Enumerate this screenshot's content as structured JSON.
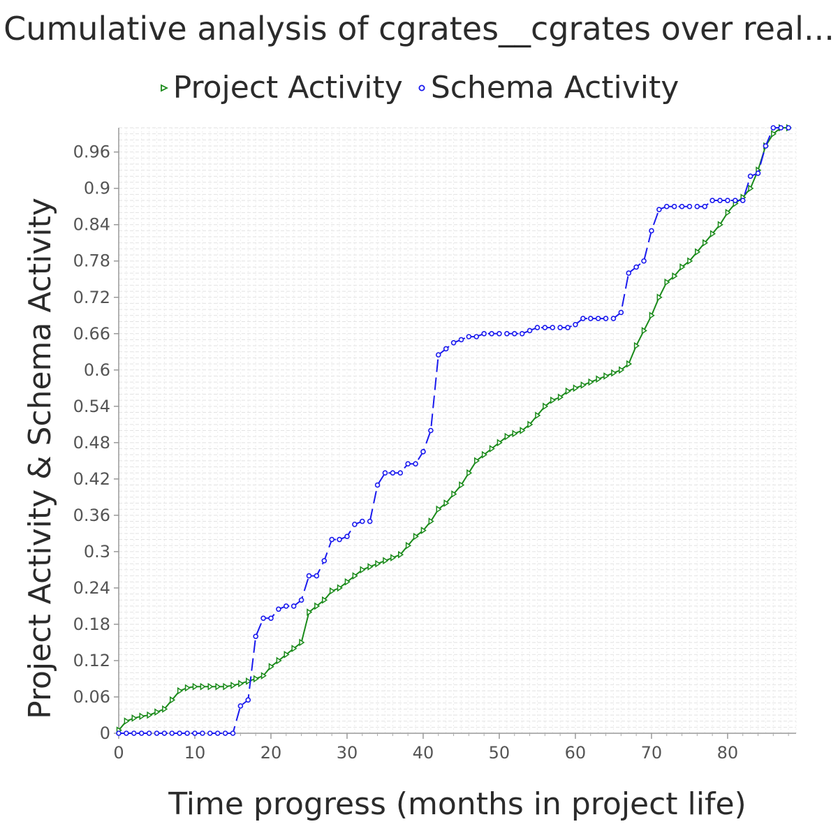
{
  "chart_data": {
    "type": "line",
    "title": "Cumulative analysis of cgrates__cgrates over real...",
    "xlabel": "Time progress (months in project life)",
    "ylabel": "Project Activity & Schema Activity",
    "xlim": [
      0,
      89
    ],
    "ylim": [
      0,
      1.0
    ],
    "x_ticks": [
      0,
      10,
      20,
      30,
      40,
      50,
      60,
      70,
      80
    ],
    "y_ticks": [
      0,
      0.06,
      0.12,
      0.18,
      0.24,
      0.3,
      0.36,
      0.42,
      0.48,
      0.54,
      0.6,
      0.66,
      0.72,
      0.78,
      0.84,
      0.9,
      0.96
    ],
    "y_tick_labels": [
      "0",
      "0.06",
      "0.12",
      "0.18",
      "0.24",
      "0.3",
      "0.36",
      "0.42",
      "0.48",
      "0.54",
      "0.6",
      "0.66",
      "0.72",
      "0.78",
      "0.84",
      "0.9",
      "0.96"
    ],
    "grid": true,
    "legend_position": "top",
    "series": [
      {
        "name": "Project Activity",
        "color": "#1a8a1a",
        "marker": "triangle-right",
        "line_style": "solid",
        "x": [
          0,
          1,
          2,
          3,
          4,
          5,
          6,
          7,
          8,
          9,
          10,
          11,
          12,
          13,
          14,
          15,
          16,
          17,
          18,
          19,
          20,
          21,
          22,
          23,
          24,
          25,
          26,
          27,
          28,
          29,
          30,
          31,
          32,
          33,
          34,
          35,
          36,
          37,
          38,
          39,
          40,
          41,
          42,
          43,
          44,
          45,
          46,
          47,
          48,
          49,
          50,
          51,
          52,
          53,
          54,
          55,
          56,
          57,
          58,
          59,
          60,
          61,
          62,
          63,
          64,
          65,
          66,
          67,
          68,
          69,
          70,
          71,
          72,
          73,
          74,
          75,
          76,
          77,
          78,
          79,
          80,
          81,
          82,
          83,
          84,
          85,
          86,
          87,
          88
        ],
        "values": [
          0.005,
          0.02,
          0.025,
          0.028,
          0.03,
          0.035,
          0.04,
          0.055,
          0.07,
          0.075,
          0.077,
          0.077,
          0.077,
          0.077,
          0.077,
          0.079,
          0.082,
          0.086,
          0.09,
          0.095,
          0.11,
          0.12,
          0.13,
          0.14,
          0.15,
          0.2,
          0.21,
          0.22,
          0.235,
          0.24,
          0.25,
          0.26,
          0.27,
          0.275,
          0.28,
          0.285,
          0.29,
          0.295,
          0.31,
          0.325,
          0.335,
          0.35,
          0.37,
          0.38,
          0.395,
          0.41,
          0.43,
          0.45,
          0.46,
          0.47,
          0.48,
          0.49,
          0.495,
          0.5,
          0.51,
          0.525,
          0.54,
          0.55,
          0.555,
          0.565,
          0.57,
          0.575,
          0.58,
          0.585,
          0.59,
          0.595,
          0.6,
          0.61,
          0.64,
          0.665,
          0.69,
          0.72,
          0.745,
          0.755,
          0.77,
          0.78,
          0.795,
          0.81,
          0.825,
          0.84,
          0.86,
          0.875,
          0.885,
          0.9,
          0.93,
          0.97,
          0.99,
          1.0,
          1.0
        ]
      },
      {
        "name": "Schema Activity",
        "color": "#1a1aee",
        "marker": "circle",
        "line_style": "dashed",
        "x": [
          0,
          1,
          2,
          3,
          4,
          5,
          6,
          7,
          8,
          9,
          10,
          11,
          12,
          13,
          14,
          15,
          16,
          17,
          18,
          19,
          20,
          21,
          22,
          23,
          24,
          25,
          26,
          27,
          28,
          29,
          30,
          31,
          32,
          33,
          34,
          35,
          36,
          37,
          38,
          39,
          40,
          41,
          42,
          43,
          44,
          45,
          46,
          47,
          48,
          49,
          50,
          51,
          52,
          53,
          54,
          55,
          56,
          57,
          58,
          59,
          60,
          61,
          62,
          63,
          64,
          65,
          66,
          67,
          68,
          69,
          70,
          71,
          72,
          73,
          74,
          75,
          76,
          77,
          78,
          79,
          80,
          81,
          82,
          83,
          84,
          85,
          86,
          87,
          88
        ],
        "values": [
          0,
          0,
          0,
          0,
          0,
          0,
          0,
          0,
          0,
          0,
          0,
          0,
          0,
          0,
          0,
          0,
          0.045,
          0.055,
          0.16,
          0.19,
          0.19,
          0.205,
          0.21,
          0.21,
          0.22,
          0.26,
          0.26,
          0.285,
          0.32,
          0.32,
          0.325,
          0.345,
          0.35,
          0.35,
          0.41,
          0.43,
          0.43,
          0.43,
          0.445,
          0.445,
          0.465,
          0.5,
          0.625,
          0.635,
          0.645,
          0.65,
          0.655,
          0.655,
          0.66,
          0.66,
          0.66,
          0.66,
          0.66,
          0.66,
          0.665,
          0.67,
          0.67,
          0.67,
          0.67,
          0.67,
          0.675,
          0.685,
          0.685,
          0.685,
          0.685,
          0.685,
          0.695,
          0.76,
          0.77,
          0.78,
          0.83,
          0.865,
          0.87,
          0.87,
          0.87,
          0.87,
          0.87,
          0.87,
          0.88,
          0.88,
          0.88,
          0.88,
          0.88,
          0.92,
          0.925,
          0.97,
          1.0,
          1.0,
          1.0
        ]
      }
    ]
  }
}
